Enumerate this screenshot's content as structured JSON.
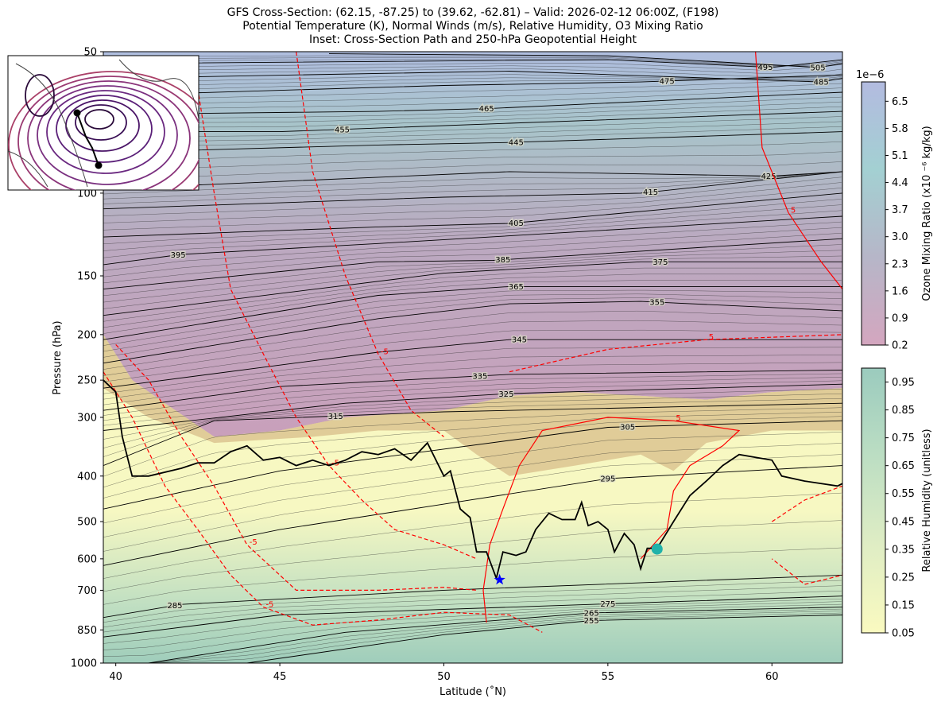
{
  "chart_data": {
    "type": "contour",
    "title": [
      "GFS Cross-Section: (62.15, -87.25) to (39.62, -62.81) – Valid: 2026-02-12 06:00Z, (F198)",
      "Potential Temperature (K), Normal Winds (m/s), Relative Humidity, O3 Mixing Ratio",
      "Inset: Cross-Section Path and 250-hPa Geopotential Height"
    ],
    "xlabel": "Latitude (˚N)",
    "ylabel": "Pressure (hPa)",
    "xlim": [
      39.62,
      62.15
    ],
    "ylim": [
      1000,
      50
    ],
    "yscale": "log",
    "xticks": [
      40,
      45,
      50,
      55,
      60
    ],
    "yticks": [
      50,
      100,
      150,
      200,
      250,
      300,
      400,
      500,
      600,
      700,
      850,
      1000
    ],
    "isentropes": [
      {
        "theta": "255",
        "label_lat": 54.5,
        "points": [
          [
            44,
            1000
          ],
          [
            50,
            870
          ],
          [
            54.5,
            812
          ],
          [
            62.15,
            790
          ]
        ]
      },
      {
        "theta": "265",
        "label_lat": 54.5,
        "points": [
          [
            41,
            1000
          ],
          [
            47,
            860
          ],
          [
            54.5,
            782
          ],
          [
            62.15,
            760
          ]
        ]
      },
      {
        "theta": "275",
        "label_lat": 55,
        "points": [
          [
            39.62,
            880
          ],
          [
            45,
            790
          ],
          [
            55,
            748
          ],
          [
            62.15,
            720
          ]
        ]
      },
      {
        "theta": "285",
        "label_lat": 41.8,
        "points": [
          [
            39.62,
            800
          ],
          [
            42,
            750
          ],
          [
            50,
            700
          ],
          [
            62.15,
            650
          ]
        ]
      },
      {
        "theta": "295",
        "label_lat": 55,
        "points": [
          [
            39.62,
            620
          ],
          [
            45,
            520
          ],
          [
            55,
            405
          ],
          [
            62.15,
            380
          ]
        ]
      },
      {
        "theta": "305",
        "label_lat": 55.6,
        "points": [
          [
            39.62,
            470
          ],
          [
            45,
            390
          ],
          [
            55,
            315
          ],
          [
            62.15,
            305
          ]
        ]
      },
      {
        "theta": "315",
        "label_lat": 46.7,
        "points": [
          [
            39.62,
            380
          ],
          [
            43,
            305
          ],
          [
            50,
            292
          ],
          [
            62.15,
            280
          ]
        ]
      },
      {
        "theta": "325",
        "label_lat": 51.9,
        "points": [
          [
            39.62,
            320
          ],
          [
            47,
            280
          ],
          [
            52,
            267
          ],
          [
            62.15,
            255
          ]
        ]
      },
      {
        "theta": "335",
        "label_lat": 51.1,
        "points": [
          [
            39.62,
            290
          ],
          [
            45,
            258
          ],
          [
            52,
            243
          ],
          [
            62.15,
            238
          ]
        ]
      },
      {
        "theta": "345",
        "label_lat": 52.3,
        "points": [
          [
            39.62,
            260
          ],
          [
            48,
            218
          ],
          [
            52,
            205
          ],
          [
            62.15,
            205
          ]
        ]
      },
      {
        "theta": "355",
        "label_lat": 56.5,
        "points": [
          [
            39.62,
            230
          ],
          [
            48,
            185
          ],
          [
            52,
            172
          ],
          [
            56,
            170
          ],
          [
            62.15,
            178
          ]
        ]
      },
      {
        "theta": "365",
        "label_lat": 52.2,
        "points": [
          [
            39.62,
            205
          ],
          [
            48,
            165
          ],
          [
            52,
            158
          ],
          [
            62.15,
            158
          ]
        ]
      },
      {
        "theta": "375",
        "label_lat": 56.6,
        "points": [
          [
            39.62,
            182
          ],
          [
            50,
            148
          ],
          [
            56,
            140
          ],
          [
            62.15,
            140
          ]
        ]
      },
      {
        "theta": "385",
        "label_lat": 51.8,
        "points": [
          [
            39.62,
            160
          ],
          [
            48,
            140
          ],
          [
            51.5,
            139
          ],
          [
            62.15,
            125
          ]
        ]
      },
      {
        "theta": "395",
        "label_lat": 41.9,
        "points": [
          [
            39.62,
            142
          ],
          [
            42,
            135
          ],
          [
            48,
            128
          ],
          [
            62.15,
            112
          ]
        ]
      },
      {
        "theta": "405",
        "label_lat": 52.2,
        "points": [
          [
            39.62,
            124
          ],
          [
            48,
            118
          ],
          [
            52,
            116
          ],
          [
            62.15,
            100
          ]
        ]
      },
      {
        "theta": "415",
        "label_lat": 56.3,
        "points": [
          [
            39.62,
            108
          ],
          [
            50,
            102
          ],
          [
            56,
            100
          ],
          [
            62.15,
            90
          ]
        ]
      },
      {
        "theta": "425",
        "label_lat": 59.9,
        "points": [
          [
            39.62,
            98
          ],
          [
            52,
            90
          ],
          [
            60,
            92
          ],
          [
            62.15,
            90
          ]
        ]
      },
      {
        "theta": "445",
        "label_lat": 52.2,
        "points": [
          [
            39.62,
            82
          ],
          [
            48,
            79
          ],
          [
            52,
            78
          ],
          [
            62.15,
            74
          ]
        ]
      },
      {
        "theta": "455",
        "label_lat": 46.9,
        "points": [
          [
            39.62,
            74
          ],
          [
            45,
            74
          ],
          [
            52,
            71
          ],
          [
            62.15,
            67
          ]
        ]
      },
      {
        "theta": "465",
        "label_lat": 51.3,
        "points": [
          [
            39.62,
            68
          ],
          [
            48,
            67
          ],
          [
            51.5,
            66
          ],
          [
            62.15,
            61
          ]
        ]
      },
      {
        "theta": "475",
        "label_lat": 56.8,
        "points": [
          [
            39.62,
            62
          ],
          [
            50,
            59
          ],
          [
            56,
            58
          ],
          [
            62.15,
            56
          ]
        ]
      },
      {
        "theta": "485",
        "label_lat": 61.5,
        "points": [
          [
            39.62,
            57
          ],
          [
            52,
            55
          ],
          [
            61.5,
            58
          ],
          [
            62.15,
            57
          ]
        ]
      },
      {
        "theta": "495",
        "label_lat": 59.8,
        "points": [
          [
            39.62,
            53
          ],
          [
            55,
            52
          ],
          [
            60,
            54
          ],
          [
            62.15,
            52
          ]
        ]
      },
      {
        "theta": "505",
        "label_lat": 61.4,
        "points": [
          [
            46.5,
            50.5
          ],
          [
            55,
            51
          ],
          [
            61.4,
            54
          ],
          [
            62.15,
            53
          ]
        ]
      }
    ],
    "tropopause_points": [
      [
        39.62,
        250
      ],
      [
        40,
        265
      ],
      [
        40.2,
        330
      ],
      [
        40.5,
        400
      ],
      [
        41,
        400
      ],
      [
        42,
        385
      ],
      [
        42.5,
        375
      ],
      [
        43,
        375
      ],
      [
        43.5,
        355
      ],
      [
        44,
        345
      ],
      [
        44.5,
        370
      ],
      [
        45,
        365
      ],
      [
        45.5,
        380
      ],
      [
        46,
        370
      ],
      [
        46.5,
        380
      ],
      [
        47,
        370
      ],
      [
        47.5,
        355
      ],
      [
        48,
        360
      ],
      [
        48.5,
        350
      ],
      [
        49,
        370
      ],
      [
        49.5,
        340
      ],
      [
        50,
        400
      ],
      [
        50.2,
        390
      ],
      [
        50.5,
        470
      ],
      [
        50.8,
        490
      ],
      [
        51,
        580
      ],
      [
        51.3,
        580
      ],
      [
        51.6,
        660
      ],
      [
        51.8,
        580
      ],
      [
        52.2,
        590
      ],
      [
        52.5,
        580
      ],
      [
        52.8,
        520
      ],
      [
        53.2,
        480
      ],
      [
        53.6,
        495
      ],
      [
        54,
        495
      ],
      [
        54.2,
        455
      ],
      [
        54.4,
        510
      ],
      [
        54.7,
        500
      ],
      [
        55,
        520
      ],
      [
        55.2,
        580
      ],
      [
        55.5,
        530
      ],
      [
        55.8,
        560
      ],
      [
        56,
        630
      ],
      [
        56.2,
        570
      ],
      [
        56.5,
        570
      ],
      [
        57,
        500
      ],
      [
        57.5,
        440
      ],
      [
        58,
        410
      ],
      [
        58.5,
        380
      ],
      [
        59,
        360
      ],
      [
        59.5,
        365
      ],
      [
        60,
        370
      ],
      [
        60.3,
        400
      ],
      [
        61,
        410
      ],
      [
        62,
        420
      ],
      [
        62.15,
        415
      ]
    ],
    "ozone_boundary": [
      [
        39.62,
        200
      ],
      [
        40.5,
        250
      ],
      [
        41.5,
        280
      ],
      [
        43,
        330
      ],
      [
        45,
        320
      ],
      [
        47,
        300
      ],
      [
        50,
        290
      ],
      [
        52,
        270
      ],
      [
        54,
        265
      ],
      [
        56,
        270
      ],
      [
        58,
        275
      ],
      [
        60,
        265
      ],
      [
        62.15,
        260
      ]
    ],
    "rh_boundary": [
      [
        39.62,
        260
      ],
      [
        41,
        300
      ],
      [
        43,
        340
      ],
      [
        46,
        330
      ],
      [
        48,
        320
      ],
      [
        50,
        320
      ],
      [
        51,
        360
      ],
      [
        52,
        400
      ],
      [
        54,
        380
      ],
      [
        56,
        360
      ],
      [
        57,
        390
      ],
      [
        58,
        340
      ],
      [
        60,
        320
      ],
      [
        62.15,
        320
      ]
    ],
    "wind_contours": [
      {
        "label": "-5",
        "style": "dashed",
        "points": [
          [
            39.62,
            240
          ],
          [
            40.5,
            300
          ],
          [
            41.5,
            420
          ],
          [
            42.5,
            520
          ],
          [
            43.5,
            650
          ],
          [
            44.5,
            760
          ],
          [
            46,
            830
          ],
          [
            48,
            810
          ],
          [
            50,
            780
          ],
          [
            52,
            790
          ],
          [
            53,
            860
          ]
        ]
      },
      {
        "label": "-5",
        "style": "dashed",
        "points": [
          [
            40,
            210
          ],
          [
            41,
            250
          ],
          [
            42,
            330
          ],
          [
            43,
            420
          ],
          [
            44,
            560
          ],
          [
            45.5,
            700
          ],
          [
            48,
            700
          ],
          [
            50,
            690
          ],
          [
            51,
            700
          ]
        ]
      },
      {
        "label": "-5",
        "style": "dashed",
        "points": [
          [
            42.5,
            60
          ],
          [
            43,
            100
          ],
          [
            43.5,
            160
          ],
          [
            44.5,
            220
          ],
          [
            45.5,
            300
          ],
          [
            46.5,
            380
          ],
          [
            47.5,
            450
          ],
          [
            48.5,
            520
          ],
          [
            50,
            560
          ],
          [
            51,
            600
          ]
        ]
      },
      {
        "label": "-5",
        "style": "dashed",
        "points": [
          [
            45.5,
            50
          ],
          [
            46,
            90
          ],
          [
            47,
            150
          ],
          [
            48,
            220
          ],
          [
            49,
            290
          ],
          [
            50,
            330
          ]
        ]
      },
      {
        "label": "5",
        "style": "solid",
        "points": [
          [
            51.3,
            820
          ],
          [
            51.2,
            700
          ],
          [
            51.4,
            560
          ],
          [
            51.8,
            470
          ],
          [
            52.3,
            380
          ],
          [
            53,
            320
          ],
          [
            55,
            300
          ],
          [
            57,
            305
          ],
          [
            59,
            320
          ],
          [
            58.5,
            345
          ],
          [
            57.5,
            380
          ],
          [
            57,
            430
          ],
          [
            56.8,
            520
          ],
          [
            56,
            600
          ]
        ]
      },
      {
        "label": "5",
        "style": "solid",
        "points": [
          [
            59.5,
            50
          ],
          [
            59.7,
            80
          ],
          [
            60.5,
            110
          ],
          [
            61.5,
            140
          ],
          [
            62.15,
            160
          ]
        ]
      },
      {
        "label": "5",
        "style": "dashed",
        "points": [
          [
            52,
            240
          ],
          [
            55,
            215
          ],
          [
            58,
            205
          ],
          [
            62.15,
            200
          ]
        ]
      },
      {
        "label": "-5",
        "style": "dashed",
        "points": [
          [
            60,
            500
          ],
          [
            61,
            450
          ],
          [
            62.15,
            420
          ],
          [
            62.15,
            650
          ],
          [
            61,
            680
          ],
          [
            60,
            600
          ]
        ]
      }
    ],
    "markers": [
      {
        "name": "start-star",
        "lat": 51.7,
        "p": 665,
        "color": "#0000ff"
      },
      {
        "name": "end-circle",
        "lat": 56.5,
        "p": 572,
        "color": "#20b2aa"
      }
    ],
    "colorbars": [
      {
        "label": "Ozone Mixing Ratio (x10 ⁻⁶ kg/kg)",
        "offset": "1e−6",
        "ticks": [
          "0.2",
          "0.9",
          "1.6",
          "2.3",
          "3.0",
          "3.7",
          "4.4",
          "5.1",
          "5.8",
          "6.5"
        ],
        "range": [
          0.2,
          7.0
        ],
        "colors": [
          "#d4a6bf",
          "#b6b6c8",
          "#a3d0d2",
          "#b3bbe0"
        ]
      },
      {
        "label": "Relative Humidity (unitless)",
        "ticks": [
          "0.05",
          "0.15",
          "0.25",
          "0.35",
          "0.45",
          "0.55",
          "0.65",
          "0.75",
          "0.85",
          "0.95"
        ],
        "range": [
          0.05,
          1.0
        ],
        "colors": [
          "#fafac0",
          "#dfedc4",
          "#bcdec3",
          "#9bcbbe"
        ]
      }
    ]
  }
}
